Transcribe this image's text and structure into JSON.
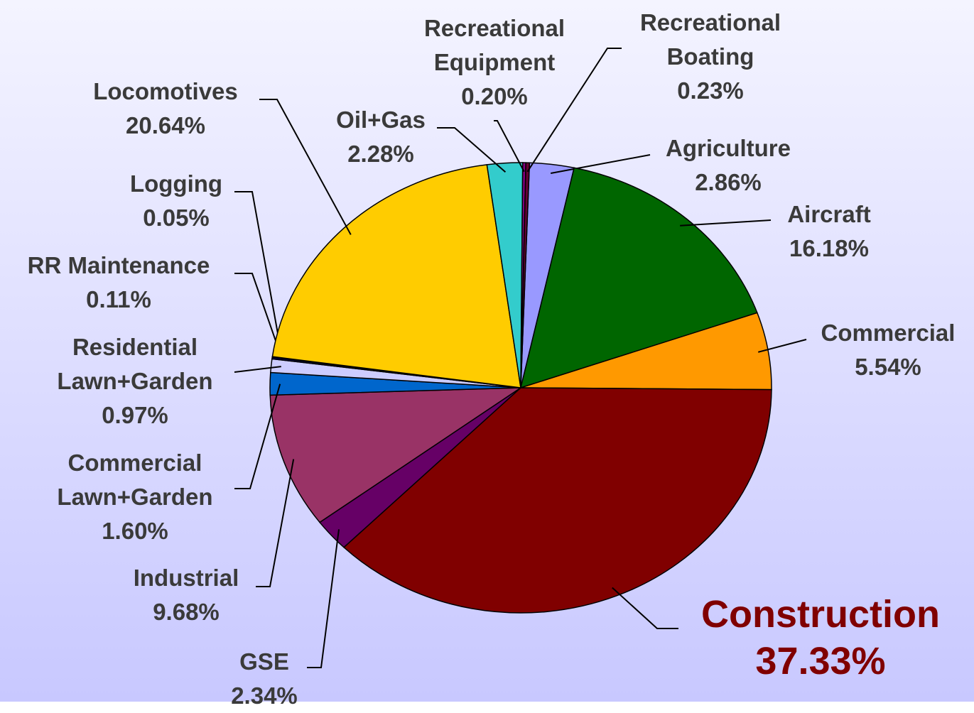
{
  "chart_data": {
    "type": "pie",
    "categories": [
      "Agriculture",
      "Aircraft",
      "Commercial",
      "Construction",
      "GSE",
      "Industrial",
      "Commercial Lawn+Garden",
      "Residential Lawn+Garden",
      "RR Maintenance",
      "Logging",
      "Locomotives",
      "Oil+Gas",
      "Recreational Equipment",
      "Recreational Boating"
    ],
    "values": [
      2.86,
      16.18,
      5.54,
      37.33,
      2.34,
      9.68,
      1.6,
      0.97,
      0.11,
      0.05,
      20.64,
      2.28,
      0.2,
      0.23
    ],
    "value_labels": [
      "2.86%",
      "16.18%",
      "5.54%",
      "37.33%",
      "2.34%",
      "9.68%",
      "1.60%",
      "0.97%",
      "0.11%",
      "0.05%",
      "20.64%",
      "2.28%",
      "0.20%",
      "0.23%"
    ],
    "colors": [
      "#9999ff",
      "#006600",
      "#ff9900",
      "#800000",
      "#660066",
      "#993366",
      "#0066cc",
      "#ccccff",
      "#000080",
      "#000000",
      "#ffcc00",
      "#33cccc",
      "#800080",
      "#660033"
    ]
  }
}
